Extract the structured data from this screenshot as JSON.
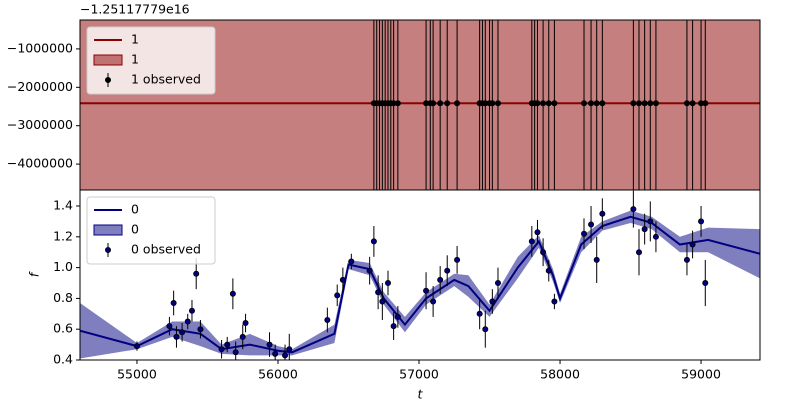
{
  "chart_data": [
    {
      "type": "errorband",
      "offset_label": "−1.25117779e16",
      "xlim": [
        54596,
        59418
      ],
      "ylim": [
        -4675000,
        -247000
      ],
      "yticks": [
        {
          "value": -1000000,
          "label": "−1000000"
        },
        {
          "value": -2000000,
          "label": "−2000000"
        },
        {
          "value": -3000000,
          "label": "−3000000"
        },
        {
          "value": -4000000,
          "label": "−4000000"
        }
      ],
      "legend": "upper left",
      "series": [
        {
          "name": "1",
          "kind": "line",
          "color": "#8b0000",
          "x": [
            54596,
            59418
          ],
          "values": [
            -2416000,
            -2416000
          ]
        },
        {
          "name": "1",
          "kind": "band",
          "color": "#8b0000",
          "x": [
            54596,
            59418
          ],
          "upper": [
            -100000,
            -100000
          ],
          "lower": [
            -5000000,
            -5000000
          ]
        },
        {
          "name": "1 observed",
          "kind": "errorbar",
          "color": "#000000",
          "x": [
            56680,
            56700,
            56720,
            56740,
            56760,
            56780,
            56800,
            56820,
            56850,
            57050,
            57080,
            57100,
            57150,
            57200,
            57270,
            57430,
            57450,
            57470,
            57500,
            57520,
            57560,
            57800,
            57820,
            57840,
            57880,
            57920,
            57960,
            58170,
            58220,
            58260,
            58300,
            58520,
            58560,
            58600,
            58640,
            58680,
            58900,
            58940,
            59000,
            59030
          ],
          "values": [
            -2416000,
            -2416000,
            -2416000,
            -2416000,
            -2416000,
            -2416000,
            -2416000,
            -2416000,
            -2416000,
            -2416000,
            -2416000,
            -2416000,
            -2416000,
            -2416000,
            -2416000,
            -2416000,
            -2416000,
            -2416000,
            -2416000,
            -2416000,
            -2416000,
            -2416000,
            -2416000,
            -2416000,
            -2416000,
            -2416000,
            -2416000,
            -2416000,
            -2416000,
            -2416000,
            -2416000,
            -2416000,
            -2416000,
            -2416000,
            -2416000,
            -2416000,
            -2416000,
            -2416000,
            -2416000,
            -2416000
          ],
          "errors": [
            5000000,
            5000000,
            5000000,
            5000000,
            5000000,
            5000000,
            5000000,
            5000000,
            5000000,
            5000000,
            5000000,
            5000000,
            5000000,
            5000000,
            5000000,
            5000000,
            5000000,
            5000000,
            5000000,
            5000000,
            5000000,
            5000000,
            5000000,
            5000000,
            5000000,
            5000000,
            5000000,
            5000000,
            5000000,
            5000000,
            5000000,
            5000000,
            5000000,
            5000000,
            5000000,
            5000000,
            5000000,
            5000000,
            5000000,
            5000000
          ]
        }
      ]
    },
    {
      "type": "errorband",
      "x_label": "t",
      "y_label": "f",
      "xlim": [
        54596,
        59418
      ],
      "ylim": [
        0.4,
        1.504
      ],
      "xticks": [
        55000,
        56000,
        57000,
        58000,
        59000
      ],
      "yticks": [
        0.4,
        0.6,
        0.8,
        {
          "value": 1,
          "label": "1.0"
        },
        1.2,
        1.4
      ],
      "legend": "upper left",
      "series": [
        {
          "name": "0",
          "kind": "line",
          "color": "#000080",
          "x": [
            54596,
            55000,
            55250,
            55450,
            55600,
            55800,
            56000,
            56100,
            56400,
            56500,
            56650,
            56750,
            56900,
            57050,
            57250,
            57350,
            57500,
            57700,
            57850,
            57950,
            58000,
            58150,
            58300,
            58500,
            58650,
            58850,
            59050,
            59418
          ],
          "values": [
            0.59,
            0.49,
            0.6,
            0.57,
            0.47,
            0.5,
            0.46,
            0.45,
            0.57,
            1.02,
            0.99,
            0.8,
            0.63,
            0.8,
            0.92,
            0.88,
            0.72,
            1.0,
            1.17,
            0.95,
            0.8,
            1.15,
            1.27,
            1.33,
            1.29,
            1.15,
            1.18,
            1.09
          ]
        },
        {
          "name": "0",
          "kind": "band",
          "color": "#000080",
          "x": [
            54596,
            55000,
            55250,
            55450,
            55600,
            55800,
            56000,
            56100,
            56400,
            56500,
            56650,
            56750,
            56900,
            57050,
            57250,
            57350,
            57500,
            57700,
            57850,
            57950,
            58000,
            58150,
            58300,
            58500,
            58650,
            58850,
            59050,
            59418
          ],
          "upper": [
            0.77,
            0.51,
            0.65,
            0.65,
            0.5,
            0.57,
            0.49,
            0.47,
            0.63,
            1.05,
            1.03,
            0.84,
            0.68,
            0.84,
            0.96,
            0.95,
            0.76,
            1.07,
            1.21,
            0.99,
            0.83,
            1.2,
            1.3,
            1.37,
            1.33,
            1.2,
            1.26,
            1.25
          ],
          "lower": [
            0.41,
            0.47,
            0.55,
            0.49,
            0.44,
            0.43,
            0.43,
            0.43,
            0.51,
            0.99,
            0.95,
            0.76,
            0.58,
            0.76,
            0.88,
            0.81,
            0.68,
            0.93,
            1.13,
            0.91,
            0.77,
            1.1,
            1.24,
            1.29,
            1.25,
            1.1,
            1.1,
            0.93
          ]
        },
        {
          "name": "0 observed",
          "kind": "errorbar",
          "color": "#000080",
          "x": [
            55000,
            55230,
            55260,
            55280,
            55320,
            55360,
            55390,
            55420,
            55450,
            55600,
            55640,
            55680,
            55700,
            55750,
            55770,
            55940,
            55980,
            56050,
            56080,
            56350,
            56420,
            56460,
            56520,
            56650,
            56680,
            56710,
            56740,
            56780,
            56820,
            56850,
            57050,
            57100,
            57150,
            57200,
            57270,
            57430,
            57470,
            57520,
            57560,
            57800,
            57840,
            57880,
            57920,
            57960,
            58170,
            58220,
            58260,
            58300,
            58520,
            58560,
            58600,
            58640,
            58680,
            58900,
            58940,
            59000,
            59030
          ],
          "values": [
            0.49,
            0.62,
            0.77,
            0.55,
            0.58,
            0.65,
            0.72,
            0.96,
            0.6,
            0.47,
            0.5,
            0.83,
            0.45,
            0.55,
            0.64,
            0.5,
            0.44,
            0.43,
            0.47,
            0.66,
            0.82,
            0.92,
            1.04,
            0.98,
            1.17,
            0.84,
            0.78,
            0.9,
            0.62,
            0.68,
            0.85,
            0.78,
            0.92,
            0.98,
            1.05,
            0.7,
            0.6,
            0.78,
            0.9,
            1.17,
            1.23,
            1.1,
            0.98,
            0.78,
            1.22,
            1.28,
            1.05,
            1.35,
            1.38,
            1.1,
            1.25,
            1.3,
            1.2,
            1.05,
            1.15,
            1.3,
            0.9
          ],
          "errors": [
            0.03,
            0.06,
            0.08,
            0.07,
            0.06,
            0.05,
            0.07,
            0.1,
            0.06,
            0.06,
            0.05,
            0.1,
            0.07,
            0.08,
            0.06,
            0.08,
            0.06,
            0.07,
            0.1,
            0.08,
            0.07,
            0.08,
            0.05,
            0.09,
            0.1,
            0.11,
            0.12,
            0.08,
            0.09,
            0.07,
            0.12,
            0.1,
            0.09,
            0.1,
            0.09,
            0.1,
            0.12,
            0.08,
            0.1,
            0.1,
            0.08,
            0.09,
            0.07,
            0.05,
            0.1,
            0.12,
            0.15,
            0.1,
            0.12,
            0.15,
            0.1,
            0.13,
            0.1,
            0.1,
            0.09,
            0.1,
            0.15
          ]
        }
      ]
    }
  ]
}
